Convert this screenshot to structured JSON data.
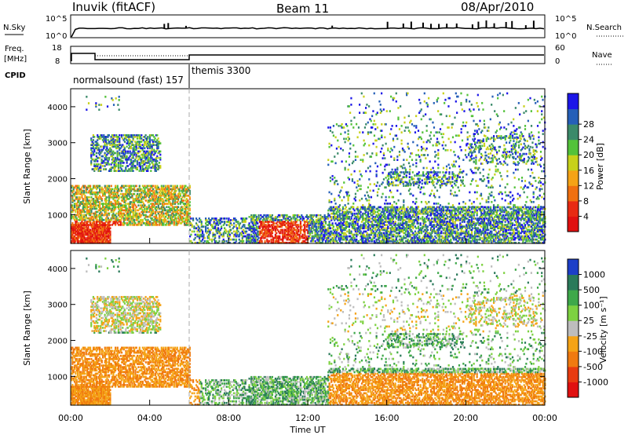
{
  "header": {
    "station": "Inuvik (fitACF)",
    "beam": "Beam 11",
    "date": "08/Apr/2010"
  },
  "top_panel": {
    "nsky_label": "N.Sky",
    "nsky_ticks": [
      "10^5",
      "10^0"
    ],
    "nsearch_label": "N.Search",
    "nsearch_ticks": [
      "10^5",
      "10^0"
    ],
    "freq_label": "Freq.",
    "freq_unit": "[MHz]",
    "freq_ticks": [
      "18",
      "8"
    ],
    "nave_label": "Nave",
    "nave_ticks": [
      "60",
      "0"
    ],
    "cpid_label": "CPID",
    "cpid_modes": [
      "normalsound (fast) 157",
      "themis 3300"
    ]
  },
  "chart_data": [
    {
      "type": "heatmap",
      "name": "power",
      "ylabel": "Slant Range [km]",
      "yticks": [
        "1000",
        "2000",
        "3000",
        "4000"
      ],
      "ylim": [
        200,
        4500
      ],
      "colorbar_label": "Power [dB]",
      "colorbar_ticks": [
        "4",
        "8",
        "12",
        "16",
        "20",
        "24",
        "28"
      ],
      "colorbar_colors": [
        "#1c16e8",
        "#255fb8",
        "#3b8a6a",
        "#53c23a",
        "#c7d11a",
        "#f5a316",
        "#f07010",
        "#e82a12",
        "#e01010"
      ]
    },
    {
      "type": "heatmap",
      "name": "velocity",
      "ylabel": "Slant Range [km]",
      "yticks": [
        "1000",
        "2000",
        "3000",
        "4000"
      ],
      "ylim": [
        200,
        4500
      ],
      "xlabel": "Time UT",
      "xticks": [
        "00:00",
        "04:00",
        "08:00",
        "12:00",
        "16:00",
        "20:00",
        "00:00"
      ],
      "colorbar_label": "Velocity [m s⁻¹]",
      "colorbar_ticks": [
        "1000",
        "500",
        "100",
        "25",
        "-25",
        "-100",
        "-500",
        "-1000"
      ],
      "colorbar_colors": [
        "#1c3fc8",
        "#2a7a5a",
        "#3ea84a",
        "#7dd140",
        "#bdbdbd",
        "#f5a316",
        "#f07a10",
        "#e83b10",
        "#e01010"
      ]
    }
  ]
}
